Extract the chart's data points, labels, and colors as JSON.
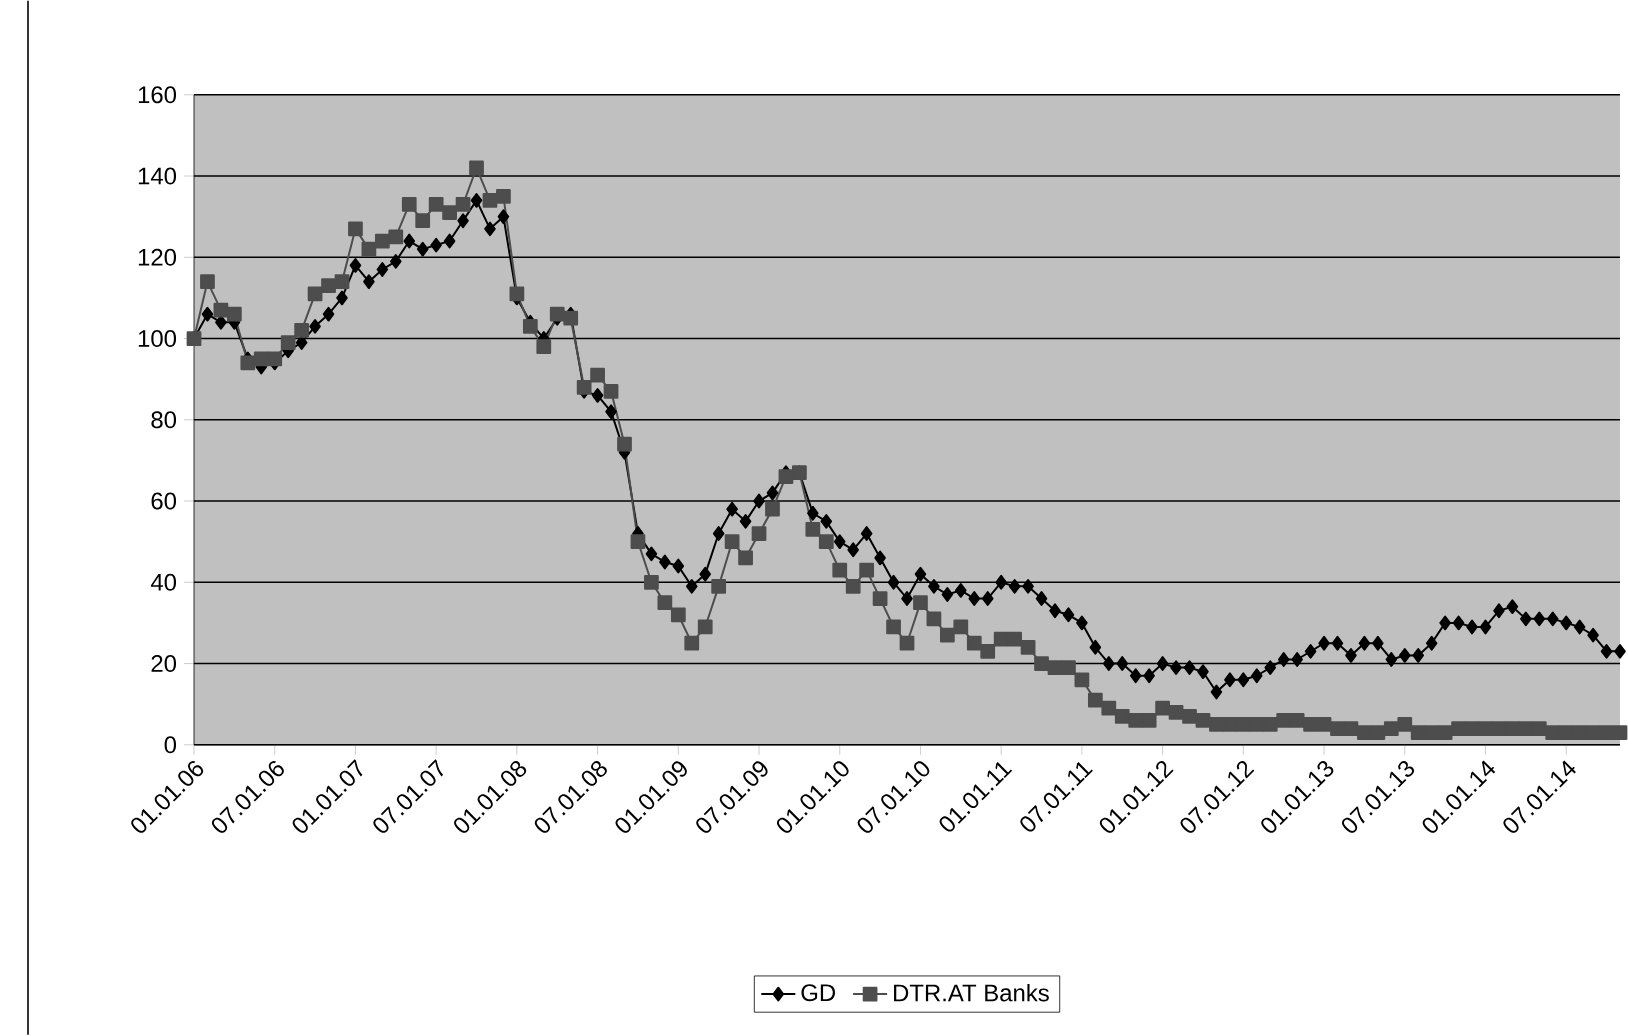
{
  "chart_data": {
    "type": "line",
    "x": [
      "2006-01",
      "2006-02",
      "2006-03",
      "2006-04",
      "2006-05",
      "2006-06",
      "2006-07",
      "2006-08",
      "2006-09",
      "2006-10",
      "2006-11",
      "2006-12",
      "2007-01",
      "2007-02",
      "2007-03",
      "2007-04",
      "2007-05",
      "2007-06",
      "2007-07",
      "2007-08",
      "2007-09",
      "2007-10",
      "2007-11",
      "2007-12",
      "2008-01",
      "2008-02",
      "2008-03",
      "2008-04",
      "2008-05",
      "2008-06",
      "2008-07",
      "2008-08",
      "2008-09",
      "2008-10",
      "2008-11",
      "2008-12",
      "2009-01",
      "2009-02",
      "2009-03",
      "2009-04",
      "2009-05",
      "2009-06",
      "2009-07",
      "2009-08",
      "2009-09",
      "2009-10",
      "2009-11",
      "2009-12",
      "2010-01",
      "2010-02",
      "2010-03",
      "2010-04",
      "2010-05",
      "2010-06",
      "2010-07",
      "2010-08",
      "2010-09",
      "2010-10",
      "2010-11",
      "2010-12",
      "2011-01",
      "2011-02",
      "2011-03",
      "2011-04",
      "2011-05",
      "2011-06",
      "2011-07",
      "2011-08",
      "2011-09",
      "2011-10",
      "2011-11",
      "2011-12",
      "2012-01",
      "2012-02",
      "2012-03",
      "2012-04",
      "2012-05",
      "2012-06",
      "2012-07",
      "2012-08",
      "2012-09",
      "2012-10",
      "2012-11",
      "2012-12",
      "2013-01",
      "2013-02",
      "2013-03",
      "2013-04",
      "2013-05",
      "2013-06",
      "2013-07",
      "2013-08",
      "2013-09",
      "2013-10",
      "2013-11",
      "2013-12",
      "2014-01",
      "2014-02",
      "2014-03",
      "2014-04",
      "2014-05",
      "2014-06",
      "2014-07",
      "2014-08",
      "2014-09",
      "2014-10",
      "2014-11"
    ],
    "series": [
      {
        "name": "GD",
        "color": "#000000",
        "marker": "diamond",
        "values": [
          100,
          106,
          104,
          104,
          95,
          93,
          94,
          97,
          99,
          103,
          106,
          110,
          118,
          114,
          117,
          119,
          124,
          122,
          123,
          124,
          129,
          134,
          127,
          130,
          110,
          104,
          100,
          105,
          106,
          87,
          86,
          82,
          72,
          52,
          47,
          45,
          44,
          39,
          42,
          52,
          58,
          55,
          60,
          62,
          67,
          67,
          57,
          55,
          50,
          48,
          52,
          46,
          40,
          36,
          42,
          39,
          37,
          38,
          36,
          36,
          40,
          39,
          39,
          36,
          33,
          32,
          30,
          24,
          20,
          20,
          17,
          17,
          20,
          19,
          19,
          18,
          13,
          16,
          16,
          17,
          19,
          21,
          21,
          23,
          25,
          25,
          22,
          25,
          25,
          21,
          22,
          22,
          25,
          30,
          30,
          29,
          29,
          33,
          34,
          31,
          31,
          31,
          30,
          29,
          27,
          23,
          23
        ]
      },
      {
        "name": "DTR.AT Banks",
        "color": "#4d4d4d",
        "marker": "square",
        "values": [
          100,
          114,
          107,
          106,
          94,
          95,
          95,
          99,
          102,
          111,
          113,
          114,
          127,
          122,
          124,
          125,
          133,
          129,
          133,
          131,
          133,
          142,
          134,
          135,
          111,
          103,
          98,
          106,
          105,
          88,
          91,
          87,
          74,
          50,
          40,
          35,
          32,
          25,
          29,
          39,
          50,
          46,
          52,
          58,
          66,
          67,
          53,
          50,
          43,
          39,
          43,
          36,
          29,
          25,
          35,
          31,
          27,
          29,
          25,
          23,
          26,
          26,
          24,
          20,
          19,
          19,
          16,
          11,
          9,
          7,
          6,
          6,
          9,
          8,
          7,
          6,
          5,
          5,
          5,
          5,
          5,
          6,
          6,
          5,
          5,
          4,
          4,
          3,
          3,
          4,
          5,
          3,
          3,
          3,
          4,
          4,
          4,
          4,
          4,
          4,
          4,
          3,
          3,
          3,
          3,
          3,
          3
        ]
      }
    ],
    "xlim": [
      "2006-01",
      "2014-11"
    ],
    "xticks": [
      {
        "value": "2006-01",
        "label": "01.01.06"
      },
      {
        "value": "2006-07",
        "label": "07.01.06"
      },
      {
        "value": "2007-01",
        "label": "01.01.07"
      },
      {
        "value": "2007-07",
        "label": "07.01.07"
      },
      {
        "value": "2008-01",
        "label": "01.01.08"
      },
      {
        "value": "2008-07",
        "label": "07.01.08"
      },
      {
        "value": "2009-01",
        "label": "01.01.09"
      },
      {
        "value": "2009-07",
        "label": "07.01.09"
      },
      {
        "value": "2010-01",
        "label": "01.01.10"
      },
      {
        "value": "2010-07",
        "label": "07.01.10"
      },
      {
        "value": "2011-01",
        "label": "01.01.11"
      },
      {
        "value": "2011-07",
        "label": "07.01.11"
      },
      {
        "value": "2012-01",
        "label": "01.01.12"
      },
      {
        "value": "2012-07",
        "label": "07.01.12"
      },
      {
        "value": "2013-01",
        "label": "01.01.13"
      },
      {
        "value": "2013-07",
        "label": "07.01.13"
      },
      {
        "value": "2014-01",
        "label": "01.01.14"
      },
      {
        "value": "2014-07",
        "label": "07.01.14"
      }
    ],
    "ylim": [
      0,
      160
    ],
    "yticks": [
      0,
      20,
      40,
      60,
      80,
      100,
      120,
      140,
      160
    ],
    "grid": "y",
    "legend": "bottom",
    "line_style": "solid"
  }
}
